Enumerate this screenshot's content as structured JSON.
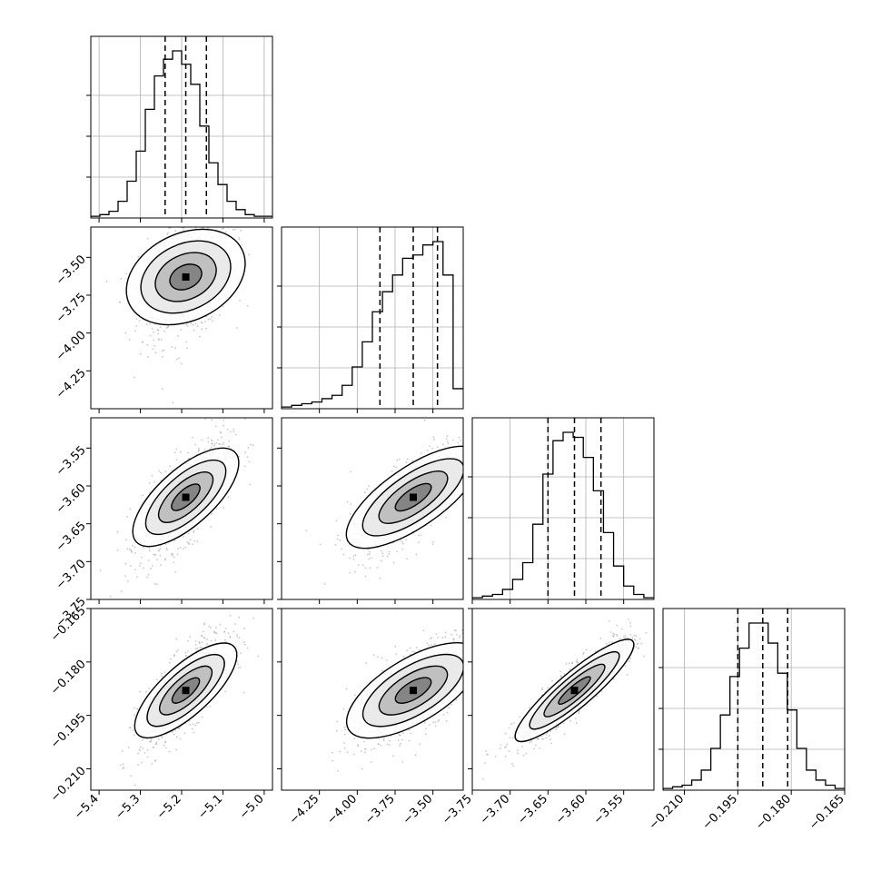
{
  "chart_data": {
    "type": "corner",
    "n_params": 4,
    "params": [
      {
        "range": [
          -5.42,
          -4.98
        ],
        "ticks": [
          -5.4,
          -5.3,
          -5.2,
          -5.1,
          -5.0
        ],
        "tick_labels": [
          "−5.4",
          "−5.3",
          "−5.2",
          "−5.1",
          "−5.0"
        ],
        "quantiles": [
          -5.24,
          -5.19,
          -5.14
        ]
      },
      {
        "range": [
          -4.5,
          -3.3
        ],
        "ticks": [
          -4.25,
          -4.0,
          -3.75,
          -3.5
        ],
        "tick_labels": [
          "−4.25",
          "−4.00",
          "−3.75",
          "−3.50"
        ],
        "quantiles": [
          -3.85,
          -3.63,
          -3.47
        ]
      },
      {
        "range": [
          -3.75,
          -3.51
        ],
        "ticks": [
          -3.75,
          -3.7,
          -3.65,
          -3.6,
          -3.55
        ],
        "tick_labels": [
          "−3.75",
          "−3.70",
          "−3.65",
          "−3.60",
          "−3.55"
        ],
        "quantiles": [
          -3.65,
          -3.615,
          -3.58
        ]
      },
      {
        "range": [
          -0.216,
          -0.165
        ],
        "ticks": [
          -0.21,
          -0.195,
          -0.18,
          -0.165
        ],
        "tick_labels": [
          "−0.210",
          "−0.195",
          "−0.180",
          "−0.165"
        ],
        "quantiles": [
          -0.195,
          -0.188,
          -0.181
        ]
      }
    ],
    "histograms": [
      [
        1,
        2,
        4,
        10,
        22,
        40,
        65,
        85,
        95,
        100,
        92,
        80,
        55,
        33,
        20,
        10,
        5,
        2,
        1,
        1
      ],
      [
        1,
        2,
        3,
        4,
        6,
        8,
        14,
        25,
        40,
        58,
        70,
        80,
        90,
        92,
        98,
        100,
        80,
        12
      ],
      [
        1,
        2,
        3,
        6,
        12,
        22,
        45,
        75,
        95,
        100,
        97,
        85,
        65,
        40,
        20,
        8,
        3,
        1
      ],
      [
        1,
        2,
        3,
        6,
        12,
        25,
        45,
        68,
        85,
        100,
        100,
        88,
        70,
        48,
        25,
        12,
        6,
        3,
        1
      ]
    ],
    "contour_levels": [
      0.12,
      0.39,
      0.68,
      0.86
    ],
    "correlations": {
      "1-0": 0.35,
      "2-0": 0.7,
      "2-1": 0.75,
      "3-0": 0.75,
      "3-1": 0.7,
      "3-2": 0.9
    },
    "colors": {
      "scatter": "#9a9a9a",
      "line": "#000000",
      "grid": "#b0b0b0"
    },
    "grid": true
  }
}
